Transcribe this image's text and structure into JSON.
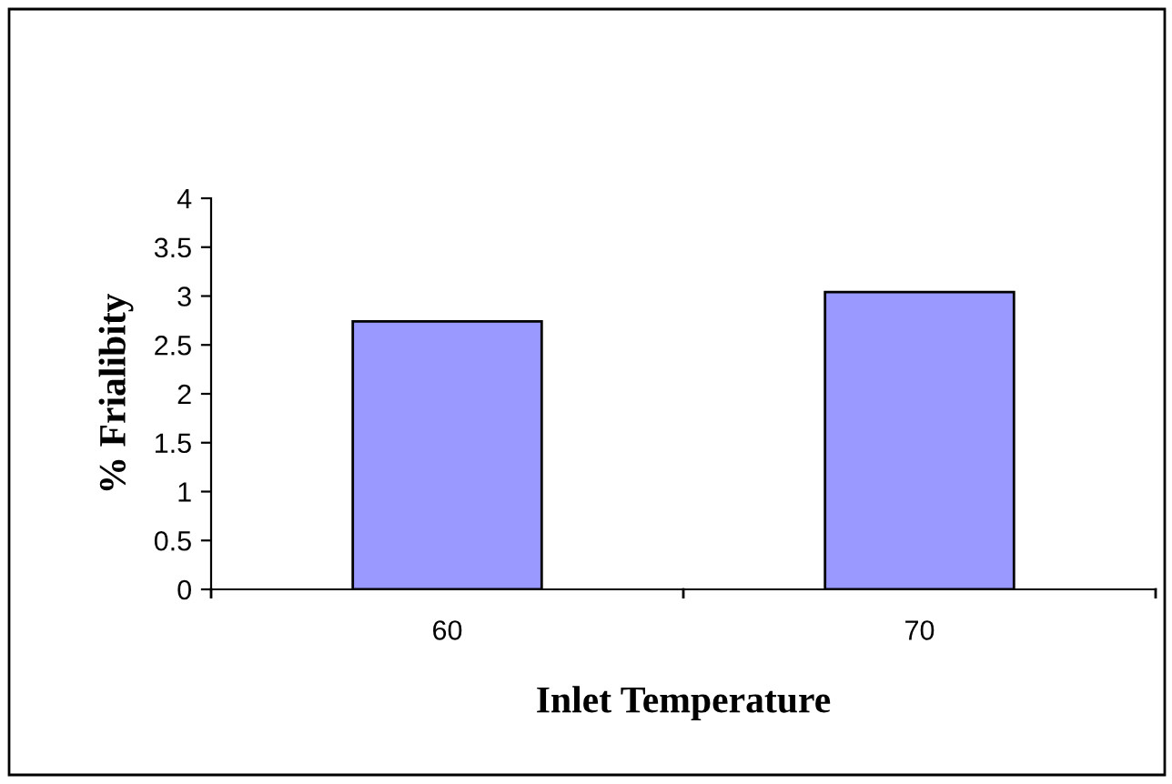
{
  "chart_data": {
    "type": "bar",
    "xlabel": "Inlet Temperature",
    "ylabel": "% Frialibity",
    "categories": [
      "60",
      "70"
    ],
    "values": [
      2.74,
      3.04
    ],
    "color": "#9999ff",
    "ylim": [
      0,
      4
    ],
    "yticks": [
      0,
      0.5,
      1,
      1.5,
      2,
      2.5,
      3,
      3.5,
      4
    ],
    "grid": false,
    "legend": false
  }
}
